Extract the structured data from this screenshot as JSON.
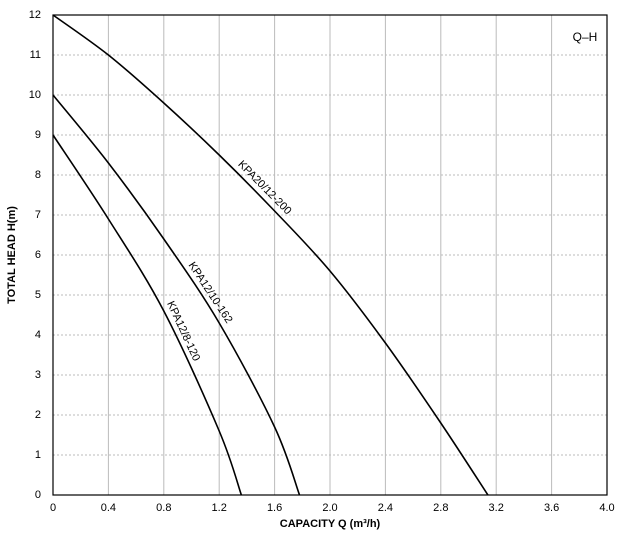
{
  "chart_data": {
    "type": "line",
    "annotation": "Q–H",
    "xlabel": "CAPACITY  Q (m³/h)",
    "ylabel": "TOTAL HEAD  H(m)",
    "xlim": [
      0,
      4
    ],
    "ylim": [
      0,
      12
    ],
    "xticks": [
      0,
      0.4,
      0.8,
      1.2,
      1.6,
      {
        "value": 2,
        "label": "2.0"
      },
      2.4,
      2.8,
      3.2,
      3.6,
      {
        "value": 4,
        "label": "4.0"
      }
    ],
    "yticks": [
      0,
      1,
      2,
      3,
      4,
      5,
      6,
      7,
      8,
      9,
      10,
      11,
      12
    ],
    "grid": true,
    "series": [
      {
        "name": "KPA20/12-200",
        "color": "#000000",
        "x": [
          0,
          0.4,
          0.8,
          1.2,
          1.6,
          2.0,
          2.4,
          2.8,
          3.14
        ],
        "values": [
          12,
          11,
          9.8,
          8.5,
          7.1,
          5.6,
          3.8,
          1.8,
          0
        ]
      },
      {
        "name": "KPA12/10-162",
        "color": "#000000",
        "x": [
          0,
          0.4,
          0.8,
          1.2,
          1.6,
          1.78
        ],
        "values": [
          10,
          8.3,
          6.4,
          4.3,
          1.7,
          0
        ]
      },
      {
        "name": "KPA12/8-120",
        "color": "#000000",
        "x": [
          0,
          0.4,
          0.8,
          1.2,
          1.36
        ],
        "values": [
          9,
          6.9,
          4.6,
          1.6,
          0
        ]
      }
    ]
  }
}
